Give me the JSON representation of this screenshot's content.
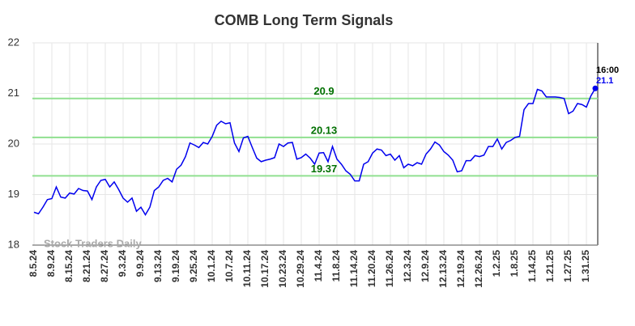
{
  "chart_data": {
    "type": "line",
    "title": "COMB Long Term Signals",
    "categories": [
      "8.5.24",
      null,
      null,
      null,
      "8.9.24",
      null,
      null,
      null,
      "8.15.24",
      null,
      null,
      null,
      "8.21.24",
      null,
      null,
      null,
      "8.27.24",
      null,
      null,
      null,
      "9.3.24",
      null,
      null,
      null,
      "9.9.24",
      null,
      null,
      null,
      "9.13.24",
      null,
      null,
      null,
      "9.19.24",
      null,
      null,
      null,
      "9.25.24",
      null,
      null,
      null,
      "10.1.24",
      null,
      null,
      null,
      "10.7.24",
      null,
      null,
      null,
      "10.11.24",
      null,
      null,
      null,
      "10.17.24",
      null,
      null,
      null,
      "10.23.24",
      null,
      null,
      null,
      "10.29.24",
      null,
      null,
      null,
      "11.4.24",
      null,
      null,
      null,
      "11.8.24",
      null,
      null,
      null,
      "11.14.24",
      null,
      null,
      null,
      "11.20.24",
      null,
      null,
      null,
      "11.26.24",
      null,
      null,
      null,
      "12.3.24",
      null,
      null,
      null,
      "12.9.24",
      null,
      null,
      null,
      "12.13.24",
      null,
      null,
      null,
      "12.19.24",
      null,
      null,
      null,
      "12.26.24",
      null,
      null,
      null,
      "1.2.25",
      null,
      null,
      null,
      "1.8.25",
      null,
      null,
      null,
      "1.14.25",
      null,
      null,
      null,
      "1.21.25",
      null,
      null,
      null,
      "1.27.25",
      null,
      null,
      null,
      "1.31.25",
      null,
      null
    ],
    "values": [
      18.65,
      18.62,
      18.75,
      18.9,
      18.92,
      19.15,
      18.95,
      18.93,
      19.03,
      19.01,
      19.12,
      19.08,
      19.07,
      18.9,
      19.15,
      19.28,
      19.3,
      19.15,
      19.25,
      19.1,
      18.93,
      18.85,
      18.93,
      18.67,
      18.75,
      18.6,
      18.75,
      19.08,
      19.15,
      19.28,
      19.32,
      19.25,
      19.5,
      19.58,
      19.75,
      20.02,
      19.98,
      19.93,
      20.03,
      20.0,
      20.15,
      20.37,
      20.45,
      20.4,
      20.42,
      20.02,
      19.85,
      20.12,
      20.15,
      19.93,
      19.72,
      19.65,
      19.68,
      19.7,
      19.73,
      20.0,
      19.95,
      20.02,
      20.03,
      19.7,
      19.73,
      19.8,
      19.72,
      19.6,
      19.82,
      19.83,
      19.65,
      19.95,
      19.7,
      19.6,
      19.47,
      19.4,
      19.27,
      19.27,
      19.6,
      19.65,
      19.82,
      19.9,
      19.88,
      19.77,
      19.8,
      19.68,
      19.77,
      19.53,
      19.6,
      19.57,
      19.63,
      19.6,
      19.8,
      19.9,
      20.04,
      19.98,
      19.85,
      19.78,
      19.68,
      19.45,
      19.47,
      19.67,
      19.67,
      19.77,
      19.75,
      19.78,
      19.95,
      19.95,
      20.1,
      19.9,
      20.03,
      20.07,
      20.13,
      20.15,
      20.68,
      20.8,
      20.8,
      21.08,
      21.05,
      20.93,
      20.93,
      20.93,
      20.92,
      20.9,
      20.6,
      20.65,
      20.8,
      20.78,
      20.73,
      20.95,
      21.1
    ],
    "color": "#0000ee",
    "ylim": [
      18,
      22
    ],
    "yticks": [
      18,
      19,
      20,
      21,
      22
    ],
    "grid": true,
    "signals": [
      20.9,
      20.13,
      19.37
    ],
    "signal_color": "#90e090",
    "signal_label_color": "#007000",
    "last_time": "16:00",
    "watermark": "Stock Traders Daily"
  }
}
